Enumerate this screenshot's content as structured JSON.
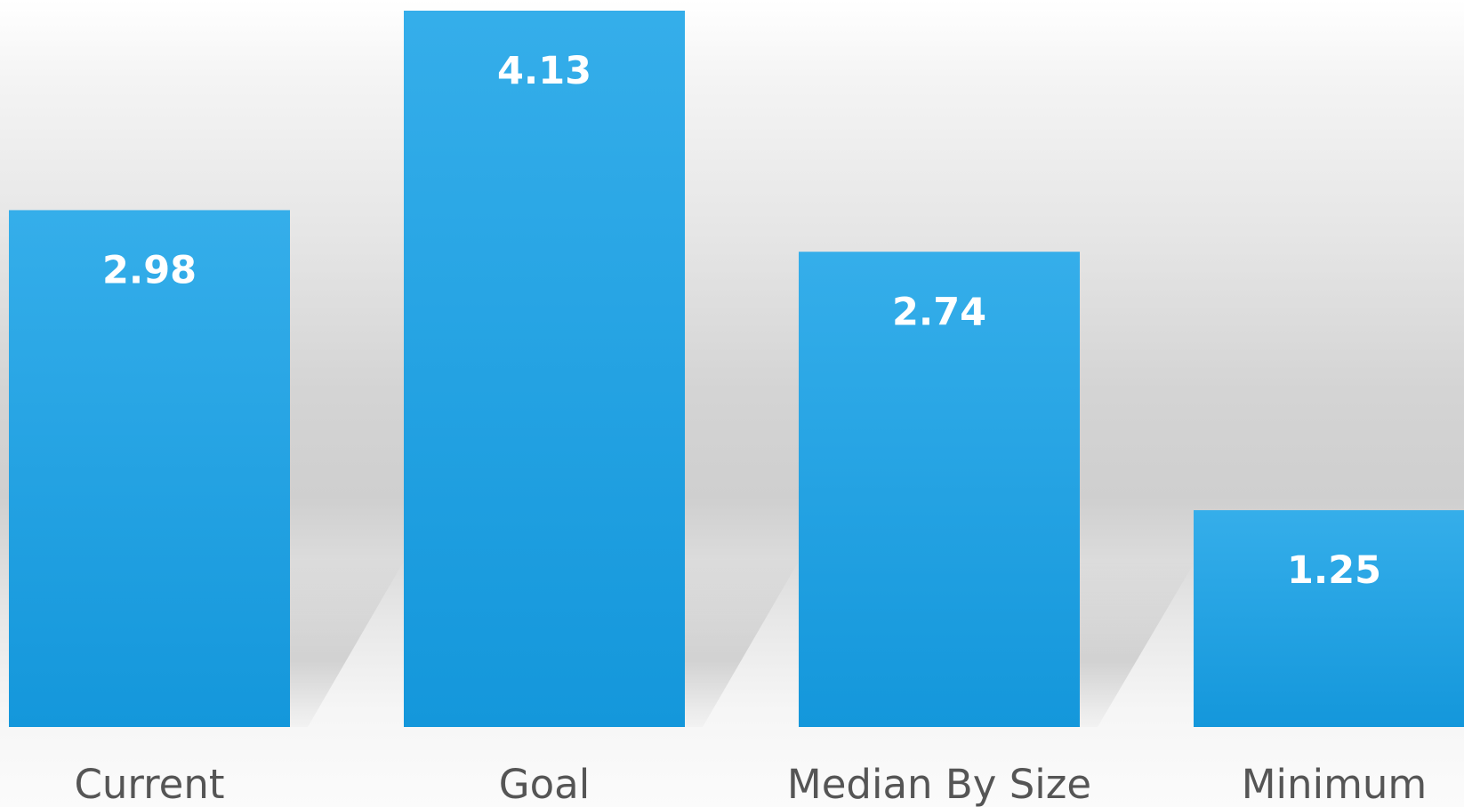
{
  "chart_data": {
    "type": "bar",
    "title": "",
    "xlabel": "",
    "ylabel": "",
    "categories": [
      "Current",
      "Goal",
      "Median By Size",
      "Minimum"
    ],
    "values": [
      2.98,
      4.13,
      2.74,
      1.25
    ],
    "value_labels": [
      "2.98",
      "4.13",
      "2.74",
      "1.25"
    ],
    "ylim": [
      0,
      4.13
    ],
    "grid": false,
    "legend": "none",
    "colors": {
      "bar_top": "#35aeea",
      "bar_bottom": "#1497db",
      "value_label": "#ffffff",
      "category_label": "#555555"
    }
  }
}
